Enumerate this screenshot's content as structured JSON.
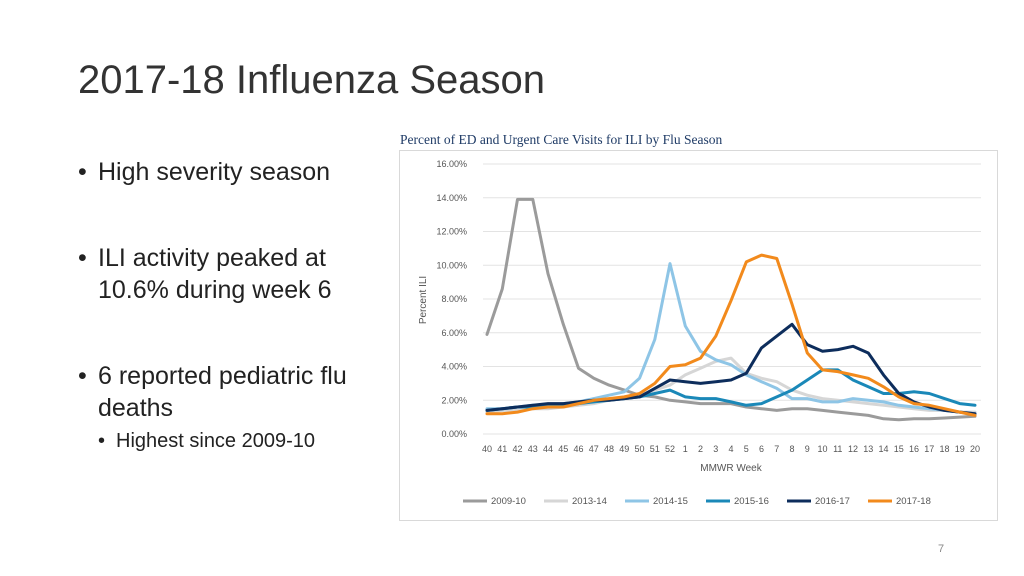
{
  "slide": {
    "title": "2017-18 Influenza Season",
    "bullets": [
      "High severity season",
      "ILI activity peaked at 10.6% during week 6",
      "6 reported pediatric flu deaths"
    ],
    "sub_bullet": "Highest since 2009-10",
    "page_number": "7"
  },
  "chart_data": {
    "type": "line",
    "title": "Percent of ED and Urgent Care Visits for ILI by Flu Season",
    "xlabel": "MMWR Week",
    "ylabel": "Percent ILI",
    "categories": [
      "40",
      "41",
      "42",
      "43",
      "44",
      "45",
      "46",
      "47",
      "48",
      "49",
      "50",
      "51",
      "52",
      "1",
      "2",
      "3",
      "4",
      "5",
      "6",
      "7",
      "8",
      "9",
      "10",
      "11",
      "12",
      "13",
      "14",
      "15",
      "16",
      "17",
      "18",
      "19",
      "20"
    ],
    "ylim": [
      0,
      16
    ],
    "yticks": [
      "0.00%",
      "2.00%",
      "4.00%",
      "6.00%",
      "8.00%",
      "10.00%",
      "12.00%",
      "14.00%",
      "16.00%"
    ],
    "series": [
      {
        "name": "2009-10",
        "color": "#9b9b9b",
        "values": [
          5.9,
          8.6,
          13.9,
          13.9,
          9.5,
          6.5,
          3.9,
          3.3,
          2.9,
          2.6,
          2.3,
          2.2,
          2.0,
          1.9,
          1.8,
          1.8,
          1.8,
          1.6,
          1.5,
          1.4,
          1.5,
          1.5,
          1.4,
          1.3,
          1.2,
          1.1,
          0.9,
          0.85,
          0.9,
          0.9,
          0.95,
          1.0,
          1.05
        ]
      },
      {
        "name": "2013-14",
        "color": "#d6d6d6",
        "values": [
          1.3,
          1.4,
          1.4,
          1.5,
          1.5,
          1.6,
          1.7,
          1.8,
          2.0,
          2.1,
          2.3,
          2.6,
          2.9,
          3.5,
          3.9,
          4.3,
          4.5,
          3.6,
          3.3,
          3.1,
          2.6,
          2.3,
          2.1,
          2.0,
          1.9,
          1.8,
          1.7,
          1.6,
          1.5,
          1.4,
          1.4,
          1.3,
          1.3
        ]
      },
      {
        "name": "2014-15",
        "color": "#8ec5e6",
        "values": [
          1.5,
          1.5,
          1.6,
          1.7,
          1.7,
          1.8,
          1.9,
          2.1,
          2.3,
          2.5,
          3.3,
          5.6,
          10.1,
          6.4,
          4.9,
          4.4,
          4.1,
          3.5,
          3.1,
          2.7,
          2.1,
          2.1,
          1.9,
          1.9,
          2.1,
          2.0,
          1.9,
          1.7,
          1.6,
          1.5,
          1.4,
          1.3,
          1.2
        ]
      },
      {
        "name": "2015-16",
        "color": "#1a88b8",
        "values": [
          1.4,
          1.5,
          1.6,
          1.6,
          1.7,
          1.7,
          1.8,
          1.9,
          2.0,
          2.1,
          2.2,
          2.4,
          2.6,
          2.2,
          2.1,
          2.1,
          1.9,
          1.7,
          1.8,
          2.2,
          2.6,
          3.2,
          3.8,
          3.8,
          3.2,
          2.8,
          2.4,
          2.4,
          2.5,
          2.4,
          2.1,
          1.8,
          1.7
        ]
      },
      {
        "name": "2016-17",
        "color": "#0d2d5c",
        "values": [
          1.4,
          1.5,
          1.6,
          1.7,
          1.8,
          1.8,
          1.9,
          2.0,
          2.0,
          2.1,
          2.2,
          2.7,
          3.2,
          3.1,
          3.0,
          3.1,
          3.2,
          3.6,
          5.1,
          5.8,
          6.5,
          5.3,
          4.9,
          5.0,
          5.2,
          4.8,
          3.5,
          2.4,
          1.9,
          1.6,
          1.4,
          1.3,
          1.2
        ]
      },
      {
        "name": "2017-18",
        "color": "#f28a1c",
        "values": [
          1.2,
          1.2,
          1.3,
          1.5,
          1.6,
          1.6,
          1.8,
          2.0,
          2.1,
          2.2,
          2.4,
          3.0,
          4.0,
          4.1,
          4.5,
          5.8,
          7.9,
          10.2,
          10.6,
          10.4,
          7.7,
          4.8,
          3.8,
          3.7,
          3.5,
          3.3,
          2.8,
          2.2,
          1.8,
          1.7,
          1.5,
          1.3,
          1.1
        ]
      }
    ]
  }
}
